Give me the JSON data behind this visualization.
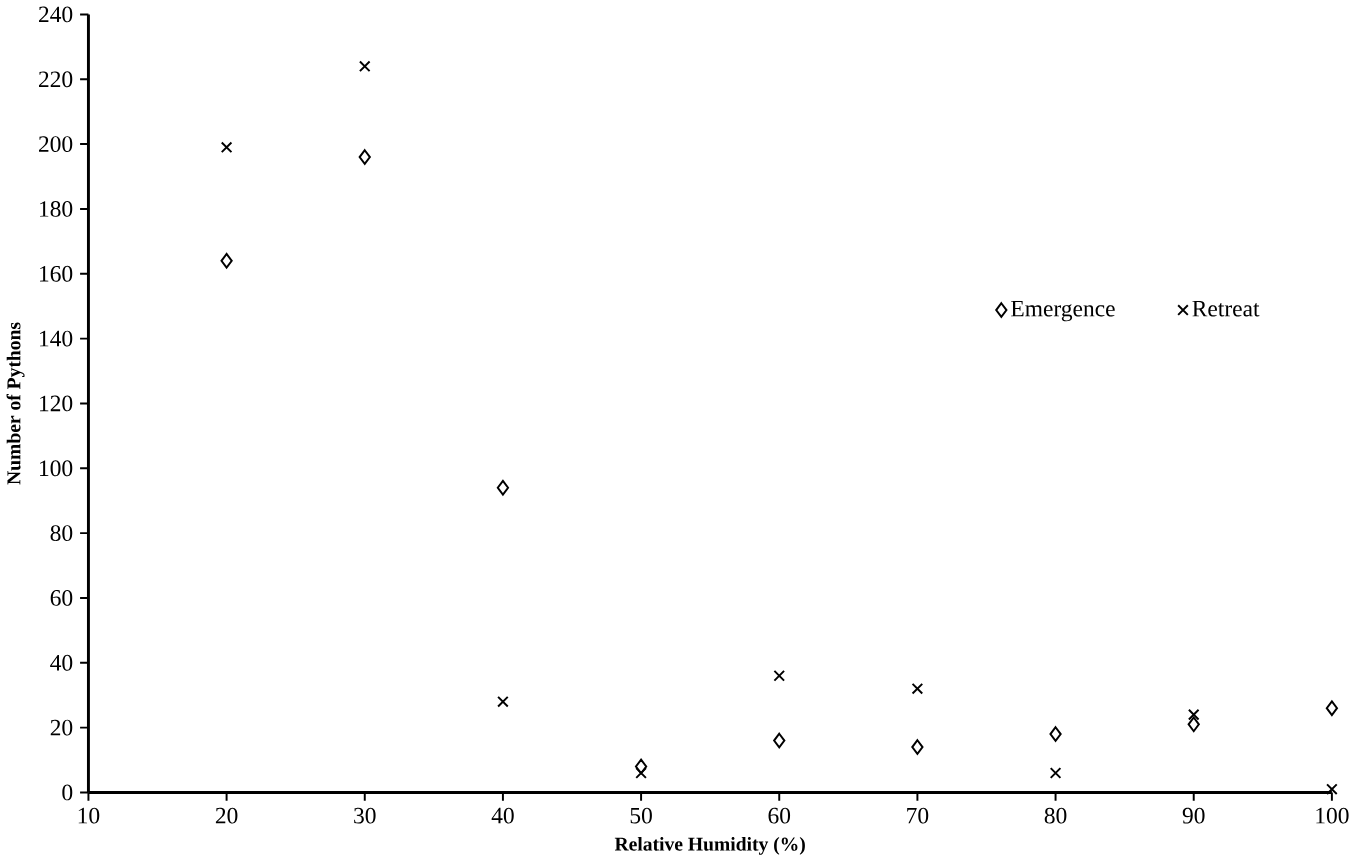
{
  "chart_data": {
    "type": "scatter",
    "xlabel": "Relative Humidity (%)",
    "ylabel": "Number of Pythons",
    "x": [
      20,
      30,
      40,
      50,
      60,
      70,
      80,
      90,
      100
    ],
    "series": [
      {
        "name": "Emergence",
        "color": "#000000",
        "marker": "diamond",
        "values": [
          164,
          196,
          94,
          8,
          16,
          14,
          18,
          21,
          26
        ]
      },
      {
        "name": "Retreat",
        "color": "#000000",
        "marker": "cross",
        "values": [
          199,
          224,
          28,
          6,
          36,
          32,
          6,
          24,
          1
        ]
      }
    ],
    "xlim": [
      10,
      100
    ],
    "xticks": [
      10,
      20,
      30,
      40,
      50,
      60,
      70,
      80,
      90,
      100
    ],
    "ylim": [
      0,
      240
    ],
    "yticks": [
      0,
      20,
      40,
      60,
      80,
      100,
      120,
      140,
      160,
      180,
      200,
      220,
      240
    ],
    "grid": false,
    "legend": "right"
  }
}
